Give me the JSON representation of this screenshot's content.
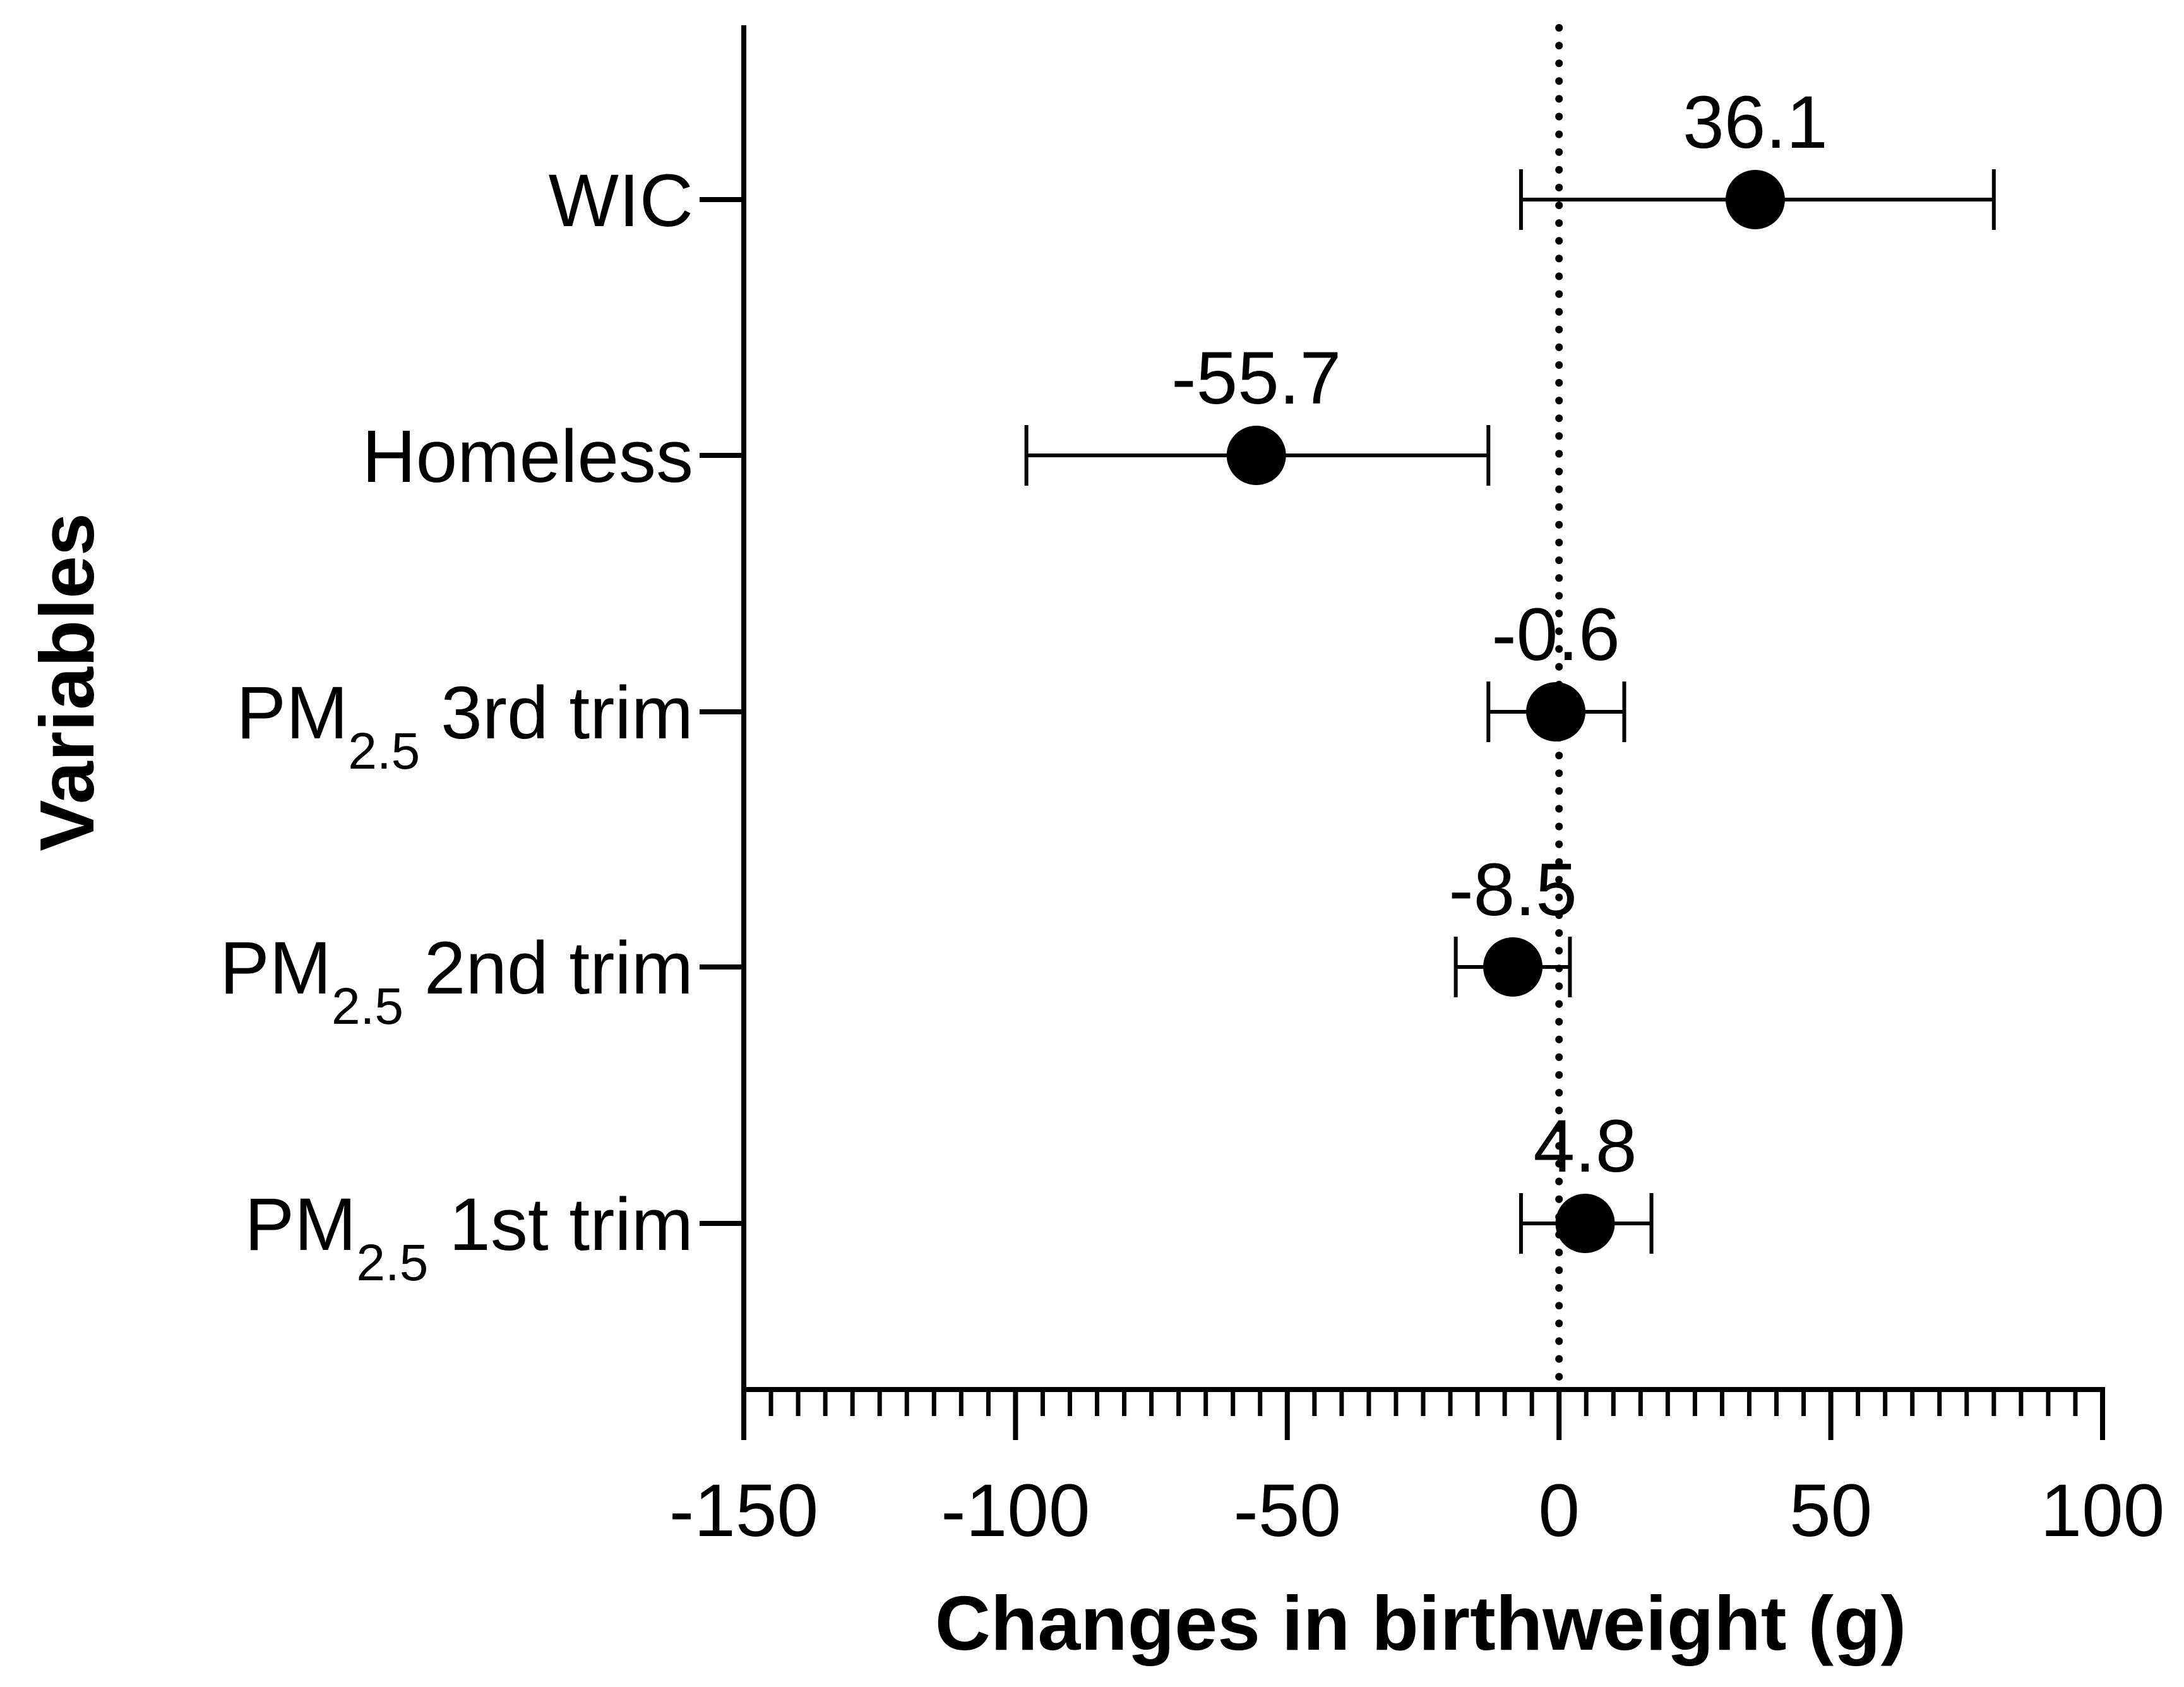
{
  "chart_data": {
    "type": "forest",
    "xlabel": "Changes in birthweight (g)",
    "ylabel": "Variables",
    "xlim": [
      -150,
      100
    ],
    "major_ticks": [
      -150,
      -100,
      -50,
      0,
      50,
      100
    ],
    "minor_tick_step": 5,
    "reference_line": 0,
    "rows": [
      {
        "label_main": "WIC",
        "label_sub": "",
        "label_rest": "",
        "estimate": 36.1,
        "value_label": "36.1",
        "ci_low": -7,
        "ci_high": 80
      },
      {
        "label_main": "Homeless",
        "label_sub": "",
        "label_rest": "",
        "estimate": -55.7,
        "value_label": "-55.7",
        "ci_low": -98,
        "ci_high": -13
      },
      {
        "label_main": "PM",
        "label_sub": "2.5",
        "label_rest": "3rd trim",
        "estimate": -0.6,
        "value_label": "-0.6",
        "ci_low": -13,
        "ci_high": 12
      },
      {
        "label_main": "PM",
        "label_sub": "2.5",
        "label_rest": "2nd trim",
        "estimate": -8.5,
        "value_label": "-8.5",
        "ci_low": -19,
        "ci_high": 2
      },
      {
        "label_main": "PM",
        "label_sub": "2.5",
        "label_rest": "1st trim",
        "estimate": 4.8,
        "value_label": "4.8",
        "ci_low": -7,
        "ci_high": 17
      }
    ]
  }
}
